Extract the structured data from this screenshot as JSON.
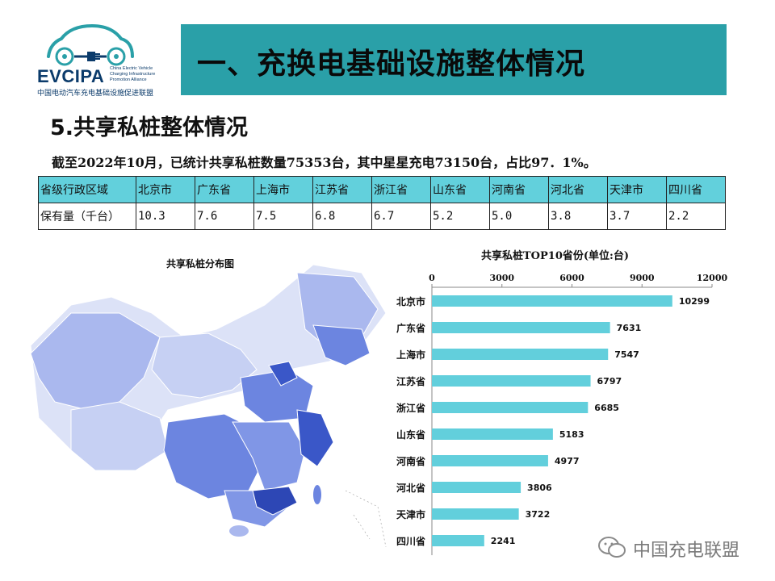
{
  "logo": {
    "brand": "EVCIPA",
    "subtitle_en": [
      "China Electric Vehicle",
      "Charging Infrastructure",
      "Promotion Alliance"
    ],
    "subtitle_cn": "中国电动汽车充电基础设施促进联盟"
  },
  "header": {
    "title": "一、充换电基础设施整体情况",
    "banner_color": "#2aa0a8"
  },
  "section_title": "5.共享私桩整体情况",
  "summary": "截至2022年10月，已统计共享私桩数量75353台，其中星星充电73150台，占比97．1%。",
  "table": {
    "header_label": "省级行政区域",
    "row_label": "保有量（千台）",
    "provinces": [
      "北京市",
      "广东省",
      "上海市",
      "江苏省",
      "浙江省",
      "山东省",
      "河南省",
      "河北省",
      "天津市",
      "四川省"
    ],
    "values": [
      "10.3",
      "7.6",
      "7.5",
      "6.8",
      "6.7",
      "5.2",
      "5.0",
      "3.8",
      "3.7",
      "2.2"
    ],
    "header_color": "#62d0dc"
  },
  "map": {
    "title": "共享私桩分布图",
    "colors": {
      "dark": "#3a57c8",
      "mid": "#6c85e0",
      "light": "#aab8ee",
      "pale": "#dce2f7"
    }
  },
  "chart_data": {
    "type": "bar",
    "orientation": "horizontal",
    "title": "共享私桩TOP10省份(单位:台)",
    "categories": [
      "北京市",
      "广东省",
      "上海市",
      "江苏省",
      "浙江省",
      "山东省",
      "河南省",
      "河北省",
      "天津市",
      "四川省"
    ],
    "values": [
      10299,
      7631,
      7547,
      6797,
      6685,
      5183,
      4977,
      3806,
      3722,
      2241
    ],
    "xlim": [
      0,
      12000
    ],
    "ticks": [
      0,
      3000,
      6000,
      9000,
      12000
    ],
    "axis_position": "top",
    "grid": false,
    "bar_color": "#62cfdc"
  },
  "watermark": {
    "text": "中国充电联盟"
  }
}
